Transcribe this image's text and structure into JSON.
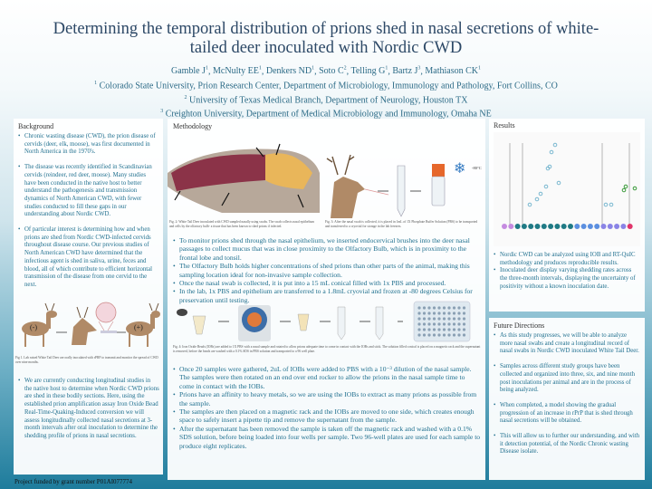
{
  "title": "Determining the temporal distribution of prions shed in nasal secretions of white-tailed deer inoculated with Nordic CWD",
  "authors": {
    "names": [
      "Gamble J",
      "McNulty EE",
      "Denkers ND",
      "Soto C",
      "Telling G",
      "Bartz J",
      "Mathiason CK"
    ],
    "sup": [
      "1",
      "1",
      "1",
      "2",
      "1",
      "3",
      "1"
    ],
    "affiliations": [
      {
        "n": "1",
        "text": "Colorado State University, Prion Research Center, Department of Microbiology, Immunology and Pathology, Fort Collins, CO"
      },
      {
        "n": "2",
        "text": "University of Texas Medical Branch, Department of Neurology, Houston TX"
      },
      {
        "n": "3",
        "text": "Creighton University, Department of Medical Microbiology and Immunology, Omaha NE"
      }
    ]
  },
  "background": {
    "heading": "Background",
    "bullets": [
      "Chronic wasting disease (CWD), the prion disease of cervids (deer, elk, moose), was first documented in North America in the 1970's.",
      "The disease was recently identified in Scandinavian cervids (reindeer, red deer, moose). Many studies have been conducted in the native host to better understand the pathogenesis and transmission dynamics of North American CWD, with fewer studies conducted to fill these gaps in our understanding about Nordic CWD.",
      "Of particular interest is determining how and when prions are shed from Nordic CWD-infected cervids throughout disease course. Our previous studies of North American CWD have determined that the infectious agent is shed in saliva, urine, feces and blood, all of which contribute to efficient horizontal transmission of the disease from one cervid to the next."
    ],
    "fig1_caption": "Fig 1. Lab raised White Tail Deer are orally inoculated with rPRP to transmit and monitor the spread of CWD over nine months.",
    "fig1_labels": [
      "(-)",
      "(+)"
    ],
    "bullets2": [
      "We are currently conducting longitudinal studies in the native host to determine when Nordic CWD prions are shed in these bodily sections. Here, using the established prion amplification assay Iron Oxide Bead Real-Time-Quaking-Induced conversion we will assess longitudinally collected nasal secretions at 3-month intervals after oral inoculation to determine the shedding profile of prions in nasal secretions."
    ]
  },
  "funding": "Project funded by grant number P01AI077774",
  "methodology": {
    "heading": "Methodology",
    "fig2_labels": [
      "Olfactory Bulb",
      "Nasal Swabs",
      "Tonsil",
      "Frontal lobe"
    ],
    "fig2_caption": "Fig. 2: White Tail Deer inoculated with CWD sampled nasally using swabs. The swab collects nasal epithelium and cells by the olfactory bulb- a tissue that has been known to shed prions if infected.",
    "fig3_temp": "-80°C",
    "fig3_caption": "Fig. 3: After the nasal swab is collected, it is placed in 1mL of 1X Phosphate Buffer Solution (PBS) to be transported and transferred to a cryovial for storage in the lab freezers.",
    "bullets1": [
      "To monitor prions shed through the nasal epithelium, we inserted endocervical brushes into the deer nasal passages to collect mucus that was in close proximity to the Olfactory Bulb, which is in proximity to the frontal lobe and tonsil.",
      "The Olfactory Bulb holds higher concentrations of shed prions than other parts of the animal, making this sampling location ideal for non-invasive sample collection.",
      "Once the nasal swab is collected, it is put into a 15 mL conical filled with 1x PBS and processed.",
      "In the lab, 1x PBS and epithelium are transferred to a 1.8mL cryovial and frozen at -80 degrees Celsius for preservation until testing."
    ],
    "fig4_caption": "Fig. 4: Iron Oxide Beads (IOBs) are added to 1X PBS with a nasal sample and rotated to allow prions adequate time to come in contact with the IOBs and stick. The solution filled conical is placed on a magnetic rack and the supernatant is removed, before the beads are washed with a 0.1% SDS in PBS solution and transported to a 96 well plate.",
    "bullets2": [
      "Once 20 samples were gathered, 2uL of IOBs were added to PBS with a 10⁻³ dilution of the nasal sample. The samples were then rotated on an end over end rocker to allow the prions in the nasal sample time to come in contact with the IOBs.",
      "Prions have an affinity to heavy metals, so we are using the IOBs to extract as many prions as possible from the sample.",
      "The samples are then placed on a magnetic rack and the IOBs are moved to one side, which creates enough space to safely insert a pipette tip and remove the supernatant from the sample.",
      "After the supernatant has been removed the sample is taken off the magnetic rack and washed with a 0.1% SDS solution, before being loaded into four wells per sample. Two 96-well plates are used for each sample to produce eight replicates."
    ]
  },
  "results": {
    "heading": "Results",
    "bullets": [
      "Nordic CWD can be analyzed using IOB and RT-QuIC methodology and produces reproducible results.",
      "Inoculated deer display varying shedding rates across the three-month intervals, displaying the uncertainty of positivity without a known inoculation date."
    ]
  },
  "future": {
    "heading": "Future Directions",
    "bullets": [
      "As this study progresses, we will be able to analyze more nasal swabs and create a longitudinal record of nasal swabs in Nordic CWD inoculated White Tail Deer.",
      "Samples across different study groups have been collected and organized into three, six, and nine month post inoculations per animal and are in the process of being analyzed.",
      "When completed, a model showing the gradual progression of an increase in rPrP that is shed through nasal secretions will be obtained.",
      "This will allow us to further our understanding, and with it detection potential, of the Nordic Chronic wasting Disease isolate."
    ]
  },
  "colors": {
    "title": "#2c4866",
    "body_text": "#1f6f8e",
    "background_bottom": "#1e7c9c"
  }
}
